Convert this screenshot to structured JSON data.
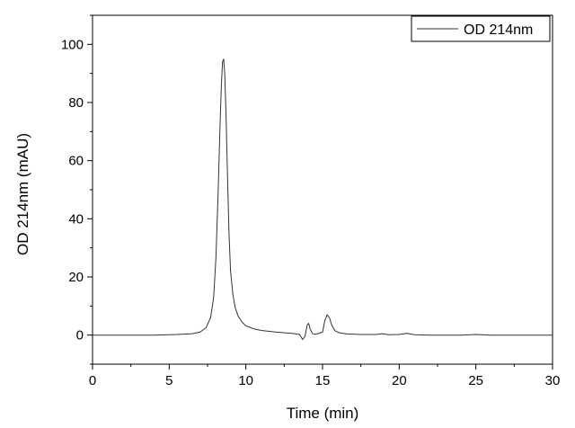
{
  "chart_data": {
    "type": "line",
    "title": "",
    "xlabel": "Time (min)",
    "ylabel": "OD 214nm (mAU)",
    "xlim": [
      0,
      30
    ],
    "ylim": [
      -10,
      110
    ],
    "x_ticks": [
      0,
      5,
      10,
      15,
      20,
      25,
      30
    ],
    "y_ticks": [
      0,
      20,
      40,
      60,
      80,
      100
    ],
    "grid": false,
    "legend": {
      "position": "top-right",
      "entries": [
        "OD 214nm"
      ]
    },
    "series": [
      {
        "name": "OD 214nm",
        "color": "#333333",
        "x": [
          0,
          2,
          4,
          5.5,
          6.5,
          7.0,
          7.4,
          7.7,
          7.9,
          8.05,
          8.2,
          8.3,
          8.4,
          8.48,
          8.55,
          8.62,
          8.7,
          8.8,
          8.9,
          9.0,
          9.15,
          9.3,
          9.5,
          9.75,
          10.0,
          10.5,
          11,
          12,
          13,
          13.5,
          13.7,
          13.85,
          14.0,
          14.1,
          14.2,
          14.35,
          14.5,
          14.7,
          15.0,
          15.15,
          15.3,
          15.45,
          15.6,
          15.8,
          16.1,
          16.6,
          17.5,
          18.5,
          18.9,
          19.3,
          20.0,
          20.5,
          21,
          22,
          24,
          25,
          26,
          28,
          30
        ],
        "y": [
          0,
          0,
          0,
          0.2,
          0.5,
          1.0,
          2.5,
          6,
          13,
          27,
          50,
          70,
          86,
          94,
          95,
          90,
          77,
          55,
          35,
          22,
          14,
          9.5,
          6.5,
          4.5,
          3.2,
          2.2,
          1.6,
          1.0,
          0.6,
          0.2,
          -1.5,
          -0.5,
          3.5,
          4.0,
          2.0,
          0.5,
          0.3,
          0.5,
          1.0,
          5.0,
          7.0,
          6.0,
          3.5,
          1.5,
          0.8,
          0.4,
          0.2,
          0.2,
          0.5,
          0.1,
          0.2,
          0.6,
          0.1,
          0,
          0,
          0.2,
          0,
          0,
          0
        ]
      }
    ]
  }
}
